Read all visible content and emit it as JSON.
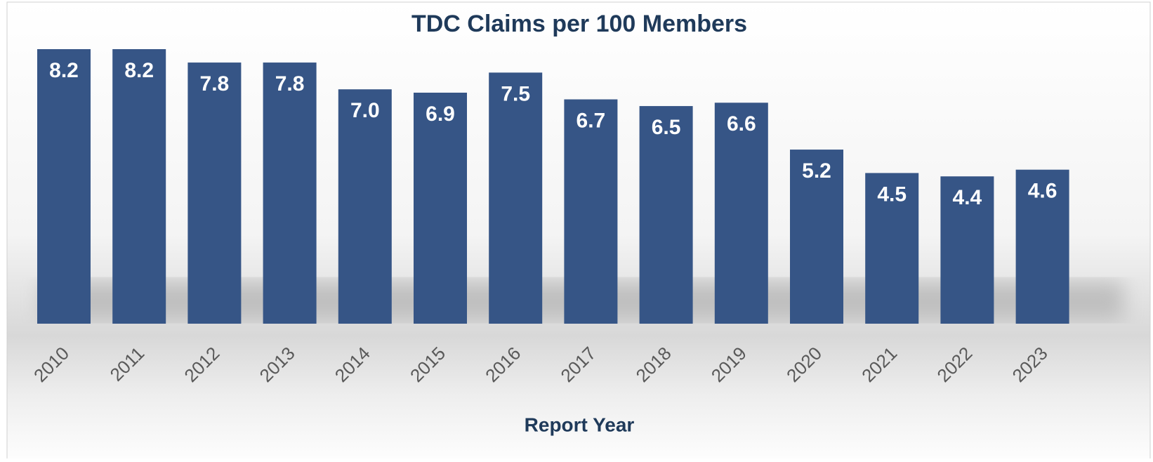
{
  "chart_data": {
    "type": "bar",
    "title": "TDC Claims per 100 Members",
    "x_label": "Report Year",
    "categories": [
      "2010",
      "2011",
      "2012",
      "2013",
      "2014",
      "2015",
      "2016",
      "2017",
      "2018",
      "2019",
      "2020",
      "2021",
      "2022",
      "2023"
    ],
    "values": [
      8.2,
      8.2,
      7.8,
      7.8,
      7.0,
      6.9,
      7.5,
      6.7,
      6.5,
      6.6,
      5.2,
      4.5,
      4.4,
      4.6
    ],
    "value_labels": [
      "8.2",
      "8.2",
      "7.8",
      "7.8",
      "7.0",
      "6.9",
      "7.5",
      "6.7",
      "6.5",
      "6.6",
      "5.2",
      "4.5",
      "4.4",
      "4.6"
    ],
    "color": "#365586",
    "grid": false
  }
}
